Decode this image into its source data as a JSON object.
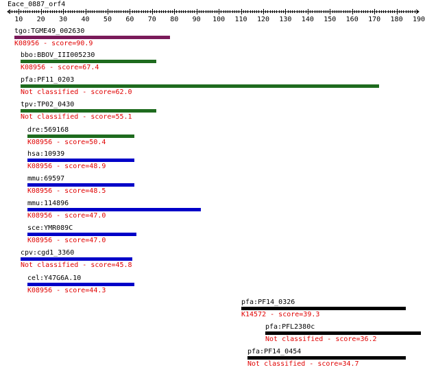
{
  "query": {
    "title": "Eace_0887_orf4"
  },
  "axis": {
    "start": 5,
    "end": 190,
    "labels": [
      10,
      20,
      30,
      40,
      50,
      60,
      70,
      80,
      90,
      100,
      110,
      120,
      130,
      140,
      150,
      160,
      170,
      180,
      190
    ]
  },
  "colors": {
    "purple": "#7a1a5a",
    "green": "#1e6b1e",
    "blue": "#0000c8",
    "black": "#000000",
    "score_text": "#e00000"
  },
  "hits": [
    {
      "name": "tgo:TGME49_002630",
      "score_text": "K08956 - score=90.9",
      "start": 8,
      "end": 78,
      "color": "purple"
    },
    {
      "name": "bbo:BBOV_III005230",
      "score_text": "K08956 - score=67.4",
      "start": 11,
      "end": 72,
      "color": "green"
    },
    {
      "name": "pfa:PF11_0203",
      "score_text": "Not classified - score=62.0",
      "start": 11,
      "end": 172,
      "color": "green"
    },
    {
      "name": "tpv:TP02_0430",
      "score_text": "Not classified - score=55.1",
      "start": 11,
      "end": 72,
      "color": "green"
    },
    {
      "name": "dre:569168",
      "score_text": "K08956 - score=50.4",
      "start": 14,
      "end": 62,
      "color": "green"
    },
    {
      "name": "hsa:10939",
      "score_text": "K08956 - score=48.9",
      "start": 14,
      "end": 62,
      "color": "blue"
    },
    {
      "name": "mmu:69597",
      "score_text": "K08956 - score=48.5",
      "start": 14,
      "end": 62,
      "color": "blue"
    },
    {
      "name": "mmu:114896",
      "score_text": "K08956 - score=47.0",
      "start": 14,
      "end": 92,
      "color": "blue"
    },
    {
      "name": "sce:YMR089C",
      "score_text": "K08956 - score=47.0",
      "start": 14,
      "end": 63,
      "color": "blue"
    },
    {
      "name": "cpv:cgd1_3360",
      "score_text": "Not classified - score=45.8",
      "start": 11,
      "end": 61,
      "color": "blue"
    },
    {
      "name": "cel:Y47G6A.10",
      "score_text": "K08956 - score=44.3",
      "start": 14,
      "end": 62,
      "color": "blue"
    },
    {
      "name": "pfa:PF14_0326",
      "score_text": "K14572 - score=39.3",
      "start": 110,
      "end": 184,
      "color": "black"
    },
    {
      "name": "pfa:PFL2380c",
      "score_text": "Not classified - score=36.2",
      "start": 121,
      "end": 191,
      "color": "black"
    },
    {
      "name": "pfa:PF14_0454",
      "score_text": "Not classified - score=34.7",
      "start": 113,
      "end": 184,
      "color": "black"
    }
  ]
}
